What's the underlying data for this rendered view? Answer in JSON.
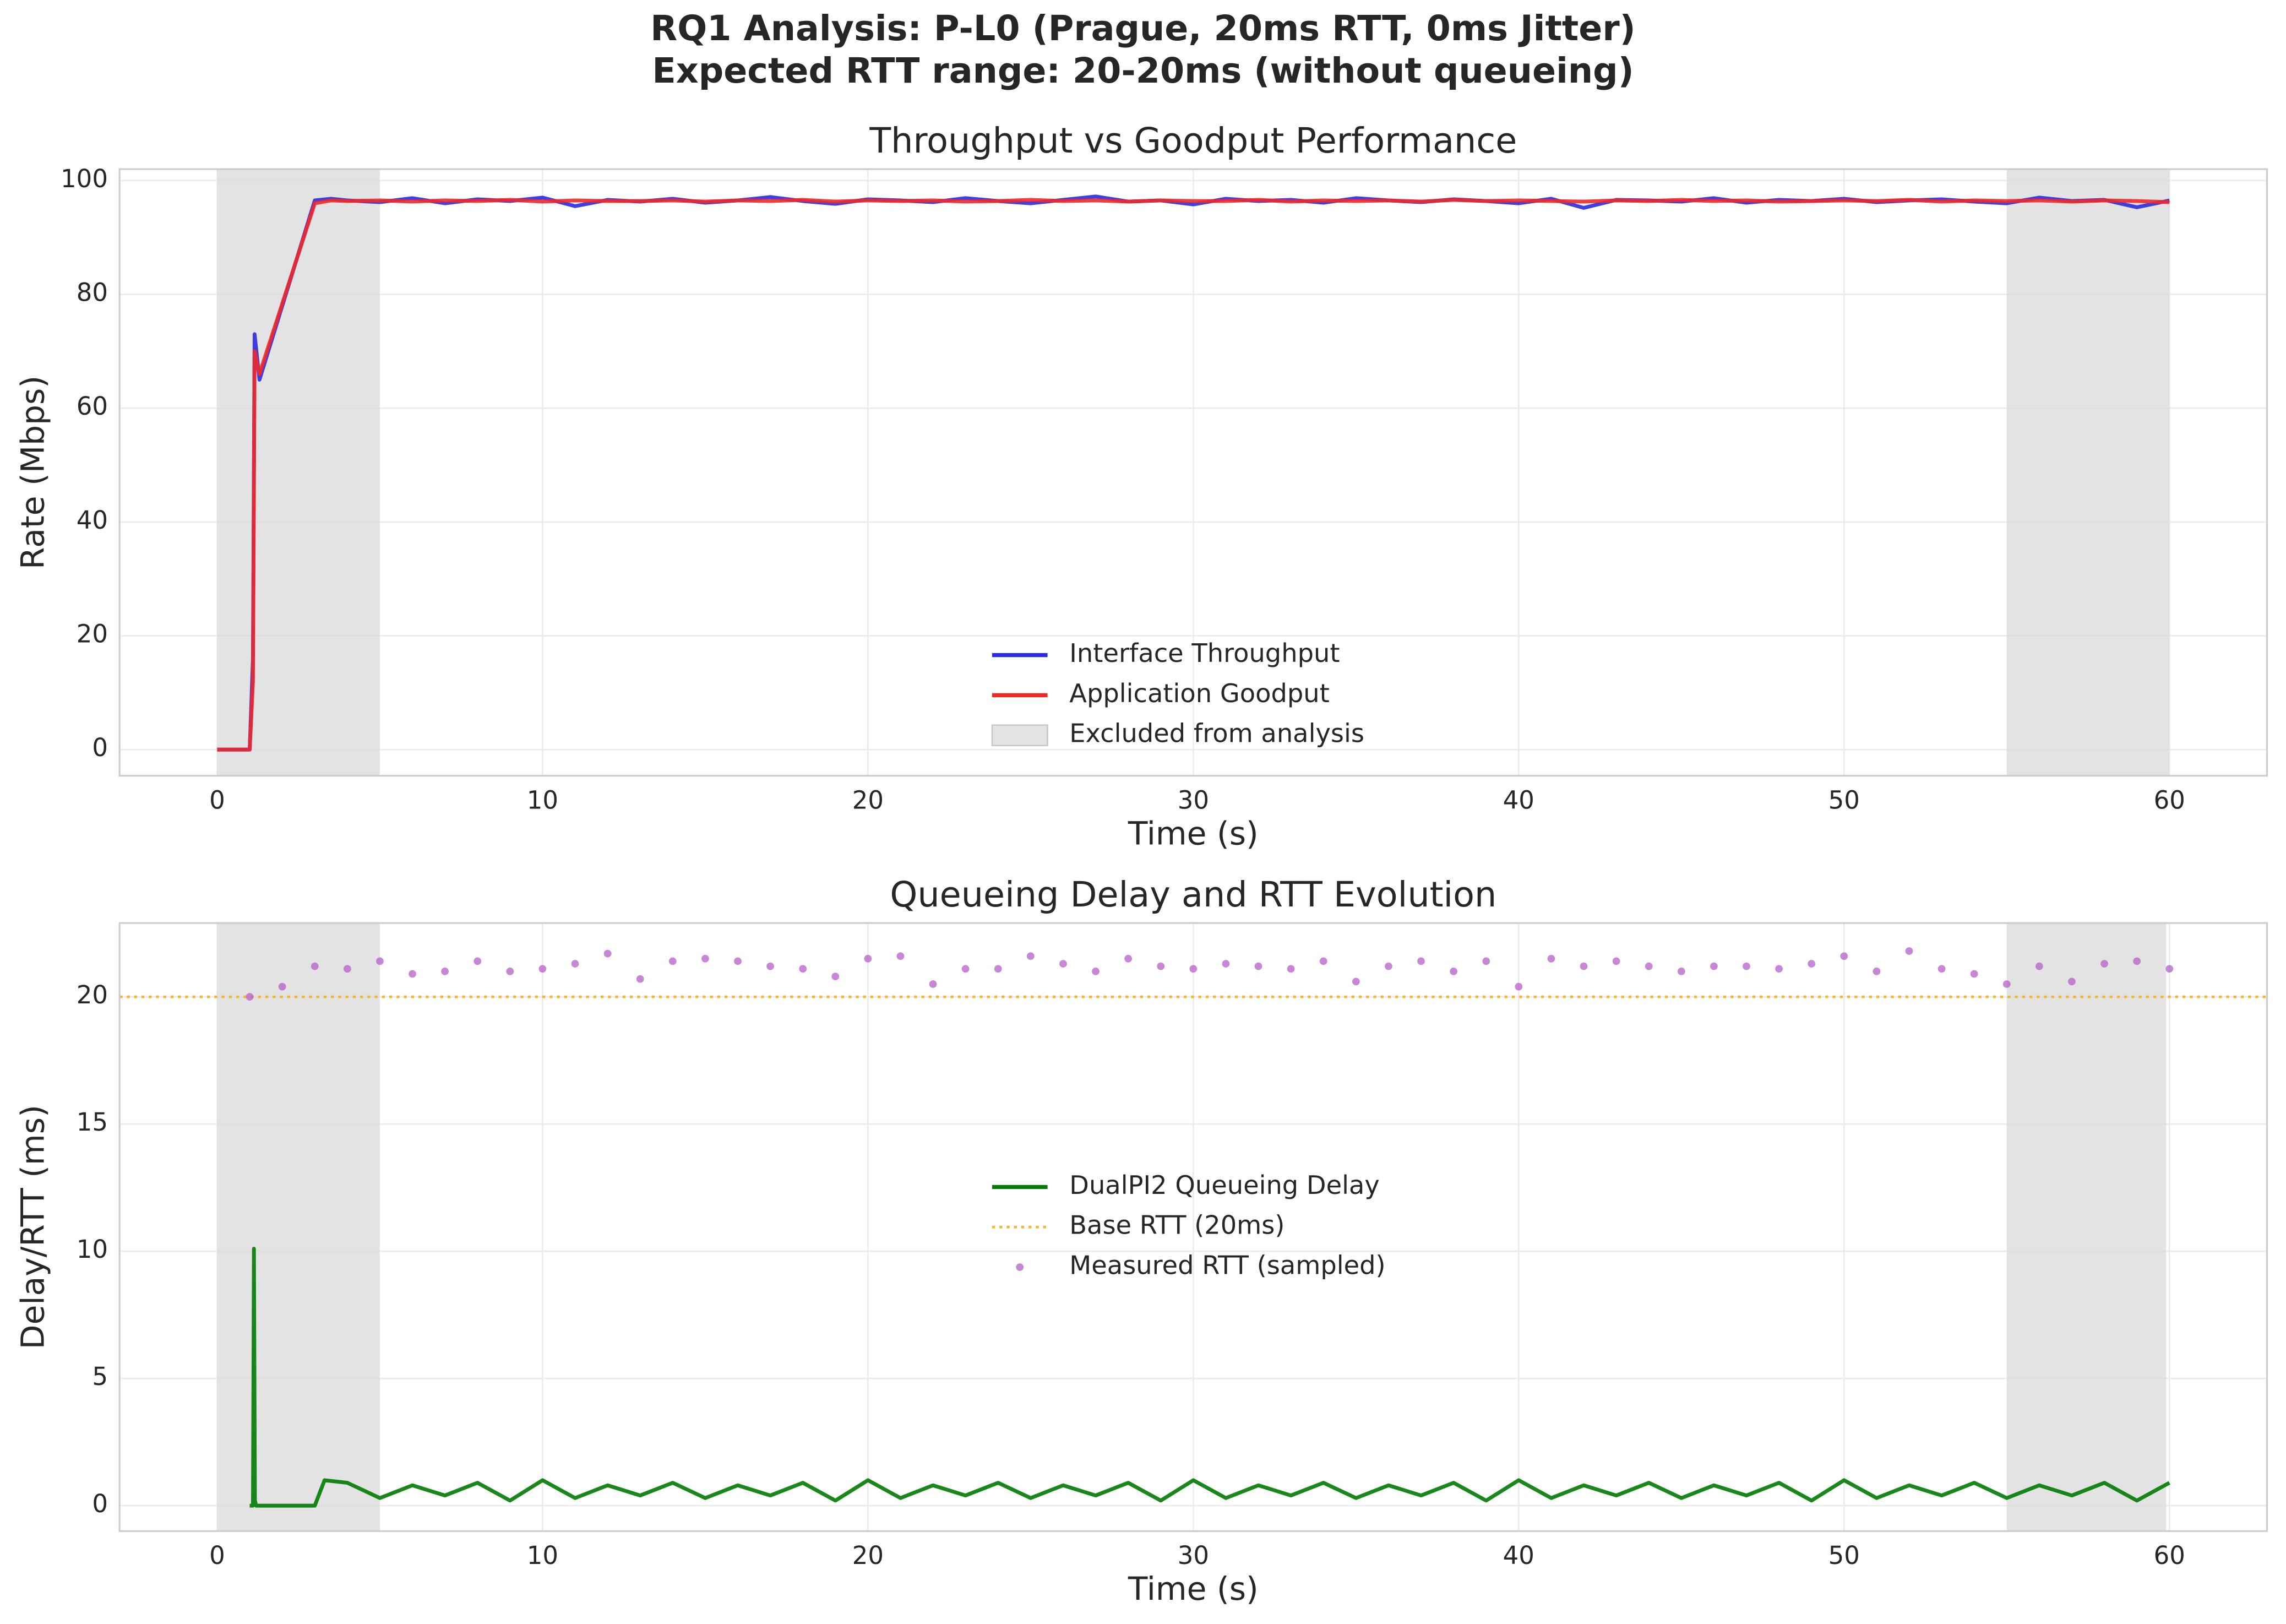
{
  "title": "RQ1 Analysis: P-L0 (Prague, 20ms RTT, 0ms Jitter)",
  "subtitle": "Expected RTT range: 20-20ms (without queueing)",
  "chart_data": [
    {
      "type": "line",
      "title": "Throughput vs Goodput Performance",
      "x_label": "Time (s)",
      "y_label": "Rate (Mbps)",
      "xlim": [
        -3,
        63
      ],
      "ylim": [
        -4.6,
        102
      ],
      "xticks": [
        0,
        10,
        20,
        30,
        40,
        50,
        60
      ],
      "yticks": [
        0,
        20,
        40,
        60,
        80,
        100
      ],
      "grid": true,
      "legend": "lower center",
      "shaded_label": "Excluded from analysis",
      "shaded_color": "#d9d9d9",
      "shaded_regions": [
        [
          0,
          5
        ],
        [
          55,
          60
        ]
      ],
      "x": [
        0,
        1,
        1.1,
        1.15,
        1.3,
        3,
        3.5,
        4,
        5,
        6,
        7,
        8,
        9,
        10,
        11,
        12,
        13,
        14,
        15,
        16,
        17,
        18,
        19,
        20,
        21,
        22,
        23,
        24,
        25,
        26,
        27,
        28,
        29,
        30,
        31,
        32,
        33,
        34,
        35,
        36,
        37,
        38,
        39,
        40,
        41,
        42,
        43,
        44,
        45,
        46,
        47,
        48,
        49,
        50,
        51,
        52,
        53,
        54,
        55,
        56,
        57,
        58,
        59,
        60
      ],
      "series": [
        {
          "name": "Interface Throughput",
          "color": "#2a2ae0",
          "style": "line",
          "values": [
            0,
            0,
            16,
            73,
            65,
            96.5,
            96.8,
            96.5,
            96.2,
            96.9,
            96.0,
            96.7,
            96.4,
            97.0,
            95.5,
            96.6,
            96.3,
            96.8,
            96.1,
            96.5,
            97.1,
            96.4,
            95.9,
            96.7,
            96.5,
            96.2,
            96.9,
            96.4,
            96.0,
            96.6,
            97.2,
            96.3,
            96.5,
            95.8,
            96.8,
            96.4,
            96.6,
            96.1,
            96.9,
            96.5,
            96.2,
            96.7,
            96.4,
            96.0,
            96.8,
            95.2,
            96.6,
            96.5,
            96.3,
            96.9,
            96.1,
            96.6,
            96.4,
            96.8,
            96.2,
            96.5,
            96.7,
            96.3,
            96.0,
            97.0,
            96.4,
            96.6,
            95.3,
            96.5
          ]
        },
        {
          "name": "Application Goodput",
          "color": "#f02828",
          "style": "line",
          "values": [
            0,
            0,
            12,
            70,
            66,
            96,
            96.5,
            96.4,
            96.5,
            96.3,
            96.5,
            96.4,
            96.6,
            96.3,
            96.5,
            96.4,
            96.4,
            96.5,
            96.3,
            96.5,
            96.4,
            96.6,
            96.3,
            96.5,
            96.4,
            96.5,
            96.3,
            96.4,
            96.6,
            96.4,
            96.5,
            96.3,
            96.5,
            96.4,
            96.4,
            96.6,
            96.3,
            96.5,
            96.4,
            96.5,
            96.3,
            96.6,
            96.4,
            96.5,
            96.4,
            96.3,
            96.5,
            96.4,
            96.6,
            96.4,
            96.5,
            96.3,
            96.4,
            96.5,
            96.4,
            96.6,
            96.3,
            96.5,
            96.4,
            96.5,
            96.3,
            96.5,
            96.4,
            96.2
          ]
        }
      ]
    },
    {
      "type": "line",
      "title": "Queueing Delay and RTT Evolution",
      "x_label": "Time (s)",
      "y_label": "Delay/RTT (ms)",
      "xlim": [
        -3,
        63
      ],
      "ylim": [
        -1.0,
        22.9
      ],
      "xticks": [
        0,
        10,
        20,
        30,
        40,
        50,
        60
      ],
      "yticks": [
        0,
        5,
        10,
        15,
        20
      ],
      "grid": true,
      "legend": "center",
      "shaded_color": "#d9d9d9",
      "shaded_regions": [
        [
          0,
          5
        ],
        [
          55,
          59.9
        ]
      ],
      "hlines": [
        {
          "name": "Base RTT (20ms)",
          "value": 20,
          "color": "#f5b431"
        }
      ],
      "series": [
        {
          "name": "DualPI2 Queueing Delay",
          "color": "#007a00",
          "style": "line",
          "x": [
            1.0,
            1.1,
            1.13,
            1.16,
            1.2,
            3.0,
            3.3,
            4,
            5,
            6,
            7,
            8,
            9,
            10,
            11,
            12,
            13,
            14,
            15,
            16,
            17,
            18,
            19,
            20,
            21,
            22,
            23,
            24,
            25,
            26,
            27,
            28,
            29,
            30,
            31,
            32,
            33,
            34,
            35,
            36,
            37,
            38,
            39,
            40,
            41,
            42,
            43,
            44,
            45,
            46,
            47,
            48,
            49,
            50,
            51,
            52,
            53,
            54,
            55,
            56,
            57,
            58,
            59,
            60
          ],
          "values": [
            0,
            0,
            10.1,
            0.2,
            0,
            0,
            1.0,
            0.9,
            0.3,
            0.8,
            0.4,
            0.9,
            0.2,
            1.0,
            0.3,
            0.8,
            0.4,
            0.9,
            0.3,
            0.8,
            0.4,
            0.9,
            0.2,
            1.0,
            0.3,
            0.8,
            0.4,
            0.9,
            0.3,
            0.8,
            0.4,
            0.9,
            0.2,
            1.0,
            0.3,
            0.8,
            0.4,
            0.9,
            0.3,
            0.8,
            0.4,
            0.9,
            0.2,
            1.0,
            0.3,
            0.8,
            0.4,
            0.9,
            0.3,
            0.8,
            0.4,
            0.9,
            0.2,
            1.0,
            0.3,
            0.8,
            0.4,
            0.9,
            0.3,
            0.8,
            0.4,
            0.9,
            0.2,
            0.9
          ]
        },
        {
          "name": "Measured RTT (sampled)",
          "color": "#b45fc8",
          "style": "scatter",
          "x": [
            1,
            2,
            3,
            4,
            5,
            6,
            7,
            8,
            9,
            10,
            11,
            12,
            13,
            14,
            15,
            16,
            17,
            18,
            19,
            20,
            21,
            22,
            23,
            24,
            25,
            26,
            27,
            28,
            29,
            30,
            31,
            32,
            33,
            34,
            35,
            36,
            37,
            38,
            39,
            40,
            41,
            42,
            43,
            44,
            45,
            46,
            47,
            48,
            49,
            50,
            51,
            52,
            53,
            54,
            55,
            56,
            57,
            58,
            59,
            60
          ],
          "values": [
            20.0,
            20.4,
            21.2,
            21.1,
            21.4,
            20.9,
            21.0,
            21.4,
            21.0,
            21.1,
            21.3,
            21.7,
            20.7,
            21.4,
            21.5,
            21.4,
            21.2,
            21.1,
            20.8,
            21.5,
            21.6,
            20.5,
            21.1,
            21.1,
            21.6,
            21.3,
            21.0,
            21.5,
            21.2,
            21.1,
            21.3,
            21.2,
            21.1,
            21.4,
            20.6,
            21.2,
            21.4,
            21.0,
            21.4,
            20.4,
            21.5,
            21.2,
            21.4,
            21.2,
            21.0,
            21.2,
            21.2,
            21.1,
            21.3,
            21.6,
            21.0,
            21.8,
            21.1,
            20.9,
            20.5,
            21.2,
            20.6,
            21.3,
            21.4,
            21.1
          ]
        }
      ]
    }
  ]
}
